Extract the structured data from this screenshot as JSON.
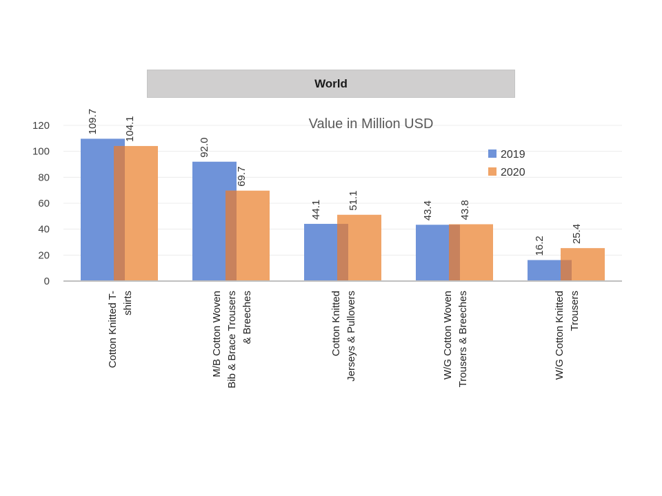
{
  "chart_data": {
    "type": "bar",
    "title": "World",
    "subtitle": "Value in Million USD",
    "categories": [
      [
        "Cotton Knitted  T-",
        "shirts"
      ],
      [
        "M/B Cotton Woven",
        "Bib & Brace Trousers",
        "& Breeches"
      ],
      [
        "Cotton Knitted",
        "Jerseys & Pullovers"
      ],
      [
        "W/G Cotton Woven",
        "Trousers & Breeches"
      ],
      [
        "W/G Cotton Knitted",
        "Trousers"
      ]
    ],
    "series": [
      {
        "name": "2019",
        "color": "#6f93d9",
        "values": [
          109.7,
          92.0,
          44.1,
          43.4,
          16.2
        ],
        "labels": [
          "109.7",
          "92.0",
          "44.1",
          "43.4",
          "16.2"
        ]
      },
      {
        "name": "2020",
        "color": "#f0a468",
        "values": [
          104.1,
          69.7,
          51.1,
          43.8,
          25.4
        ],
        "labels": [
          "104.1",
          "69.7",
          "51.1",
          "43.8",
          "25.4"
        ]
      }
    ],
    "overlap_color": "#c8825d",
    "ylim": [
      0,
      120
    ],
    "yticks": [
      0,
      20,
      40,
      60,
      80,
      100,
      120
    ],
    "grid": true,
    "legend_position": "top-right"
  }
}
